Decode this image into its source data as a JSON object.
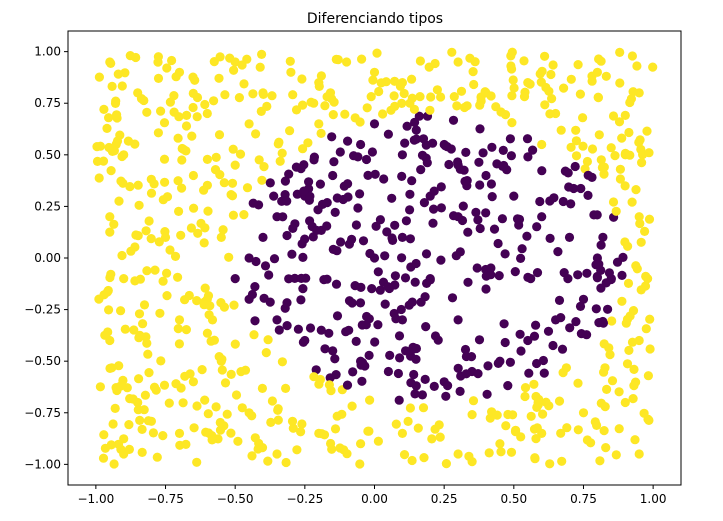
{
  "chart_data": {
    "type": "scatter",
    "title": "Diferenciando tipos",
    "xlabel": "",
    "ylabel": "",
    "xlim": [
      -1.1,
      1.1
    ],
    "ylim": [
      -1.1,
      1.1
    ],
    "xticks": [
      -1.0,
      -0.75,
      -0.5,
      -0.25,
      0.0,
      0.25,
      0.5,
      0.75,
      1.0
    ],
    "xtick_labels": [
      "−1.00",
      "−0.75",
      "−0.50",
      "−0.25",
      "0.00",
      "0.25",
      "0.50",
      "0.75",
      "1.00"
    ],
    "yticks": [
      -1.0,
      -0.75,
      -0.5,
      -0.25,
      0.0,
      0.25,
      0.5,
      0.75,
      1.0
    ],
    "ytick_labels": [
      "−1.00",
      "−0.75",
      "−0.50",
      "−0.25",
      "0.00",
      "0.25",
      "0.50",
      "0.75",
      "1.00"
    ],
    "grid": false,
    "legend": "none",
    "point_count": 1000,
    "class_rule": "purple inside circle of radius 0.7 centered at (0.2, 0); yellow outside",
    "colors": {
      "inside": "#440154",
      "outside": "#fde725"
    },
    "series": [
      {
        "class": "inside",
        "points": [
          [
            0.0,
            0.65
          ],
          [
            0.05,
            0.6
          ],
          [
            -0.05,
            0.55
          ],
          [
            0.1,
            0.5
          ],
          [
            0.15,
            0.62
          ],
          [
            0.25,
            0.55
          ],
          [
            0.3,
            0.45
          ],
          [
            0.4,
            0.4
          ],
          [
            0.5,
            0.3
          ],
          [
            0.6,
            0.2
          ],
          [
            0.7,
            0.1
          ],
          [
            0.8,
            0.0
          ],
          [
            0.85,
            -0.1
          ],
          [
            0.75,
            -0.2
          ],
          [
            0.65,
            -0.3
          ],
          [
            0.55,
            -0.4
          ],
          [
            0.45,
            -0.5
          ],
          [
            0.35,
            -0.55
          ],
          [
            0.25,
            -0.6
          ],
          [
            0.15,
            -0.62
          ],
          [
            0.05,
            -0.55
          ],
          [
            -0.05,
            -0.5
          ],
          [
            -0.15,
            -0.45
          ],
          [
            -0.25,
            -0.4
          ],
          [
            -0.35,
            -0.3
          ],
          [
            -0.45,
            -0.2
          ],
          [
            -0.5,
            -0.1
          ],
          [
            -0.45,
            0.0
          ],
          [
            -0.4,
            0.1
          ],
          [
            -0.35,
            0.2
          ],
          [
            -0.25,
            0.3
          ],
          [
            -0.15,
            0.4
          ],
          [
            0.2,
            0.3
          ],
          [
            0.3,
            0.2
          ],
          [
            0.1,
            0.1
          ],
          [
            0.0,
            0.0
          ],
          [
            0.2,
            -0.1
          ],
          [
            0.4,
            -0.15
          ],
          [
            0.3,
            -0.3
          ],
          [
            0.1,
            -0.3
          ]
        ]
      },
      {
        "class": "outside",
        "points": [
          [
            -0.95,
            0.95
          ],
          [
            -0.85,
            0.8
          ],
          [
            -0.9,
            0.5
          ],
          [
            -0.95,
            0.2
          ],
          [
            -0.9,
            -0.1
          ],
          [
            -0.95,
            -0.4
          ],
          [
            -0.85,
            -0.7
          ],
          [
            -0.9,
            -0.95
          ],
          [
            -0.7,
            0.9
          ],
          [
            -0.6,
            0.7
          ],
          [
            -0.65,
            0.4
          ],
          [
            -0.75,
            0.1
          ],
          [
            -0.7,
            -0.3
          ],
          [
            -0.65,
            -0.6
          ],
          [
            -0.7,
            -0.85
          ],
          [
            -0.5,
            0.95
          ],
          [
            -0.4,
            0.8
          ],
          [
            -0.3,
            0.9
          ],
          [
            -0.2,
            0.85
          ],
          [
            -0.1,
            0.95
          ],
          [
            0.0,
            0.9
          ],
          [
            0.1,
            0.85
          ],
          [
            0.3,
            0.95
          ],
          [
            0.4,
            0.8
          ],
          [
            0.55,
            0.85
          ],
          [
            0.65,
            0.7
          ],
          [
            0.8,
            0.9
          ],
          [
            0.95,
            0.8
          ],
          [
            0.9,
            0.5
          ],
          [
            0.95,
            0.2
          ],
          [
            0.98,
            -0.1
          ],
          [
            0.95,
            -0.4
          ],
          [
            0.9,
            -0.7
          ],
          [
            0.95,
            -0.95
          ],
          [
            0.75,
            -0.75
          ],
          [
            0.6,
            -0.85
          ],
          [
            0.45,
            -0.9
          ],
          [
            0.3,
            -0.95
          ],
          [
            0.1,
            -0.85
          ],
          [
            -0.05,
            -0.9
          ],
          [
            -0.2,
            -0.85
          ],
          [
            -0.35,
            -0.95
          ],
          [
            -0.45,
            -0.75
          ],
          [
            -0.55,
            -0.5
          ],
          [
            -0.6,
            -0.2
          ],
          [
            -0.55,
            0.1
          ],
          [
            -0.5,
            0.45
          ],
          [
            -0.45,
            0.65
          ],
          [
            -0.2,
            0.65
          ],
          [
            0.6,
            0.55
          ]
        ]
      }
    ]
  }
}
